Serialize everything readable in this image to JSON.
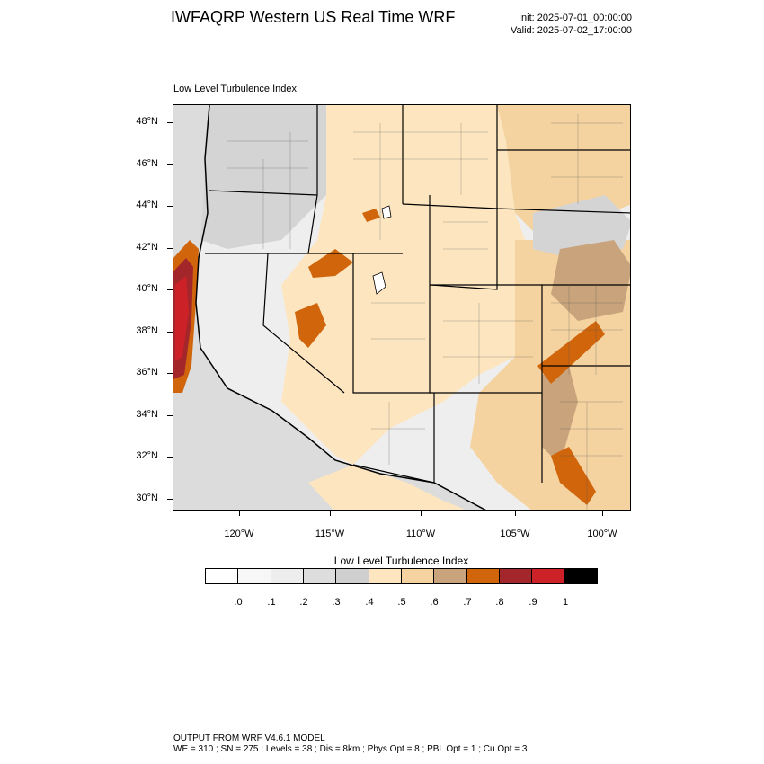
{
  "header": {
    "title": "IWFAQRP Western US Real Time WRF",
    "init": "Init: 2025-07-01_00:00:00",
    "valid": "Valid: 2025-07-02_17:00:00"
  },
  "map": {
    "field_label": "Low Level Turbulence Index",
    "lat_labels": [
      "48°N",
      "46°N",
      "44°N",
      "42°N",
      "40°N",
      "38°N",
      "36°N",
      "34°N",
      "32°N",
      "30°N"
    ],
    "lon_labels": [
      "120°W",
      "115°W",
      "110°W",
      "105°W",
      "100°W"
    ],
    "colors": {
      "ocean": "#dcdcdc",
      "land_low": "#f0f0f0",
      "mid_gray": "#d4d4d4",
      "tan_light": "#fde6bf",
      "tan": "#f5d3a0",
      "brown": "#c9a37c",
      "orange": "#d0650c",
      "dark_red": "#a3262a",
      "red": "#cc2127"
    }
  },
  "colorbar": {
    "title": "Low Level Turbulence Index",
    "labels": [
      ".0",
      ".1",
      ".2",
      ".3",
      ".4",
      ".5",
      ".6",
      ".7",
      ".8",
      ".9",
      "1"
    ],
    "colors": [
      "#ffffff",
      "#f7f7f7",
      "#ededed",
      "#dddddd",
      "#cfcfcf",
      "#fde6bf",
      "#f5d3a0",
      "#c9a37c",
      "#d0650c",
      "#a3262a",
      "#cc2127",
      "#000000"
    ]
  },
  "footer": {
    "line1": "OUTPUT FROM WRF V4.6.1 MODEL",
    "line2": "WE = 310 ; SN = 275 ; Levels = 38 ; Dis = 8km ; Phys Opt = 8 ; PBL Opt = 1 ; Cu Opt = 3"
  }
}
